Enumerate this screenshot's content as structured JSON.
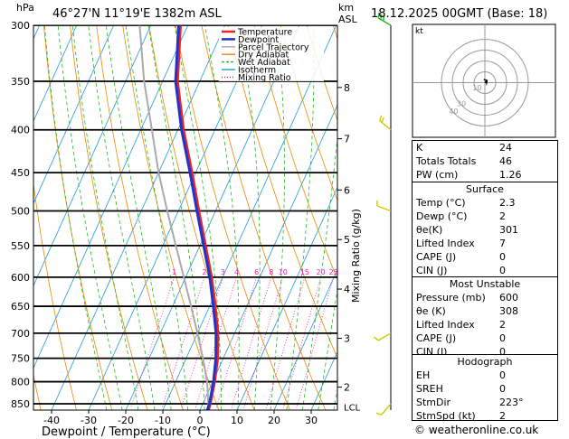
{
  "header": {
    "pressure_unit": "hPa",
    "location": "46°27'N  11°19'E  1382m  ASL",
    "height_unit_line1": "km",
    "height_unit_line2": "ASL",
    "datetime": "18.12.2025  00GMT  (Base: 18)"
  },
  "hodograph": {
    "unit_label": "kt",
    "ring_labels": [
      "40",
      "30",
      "10"
    ]
  },
  "indices": {
    "K_label": "K",
    "K": "24",
    "TT_label": "Totals Totals",
    "TT": "46",
    "PW_label": "PW (cm)",
    "PW": "1.26"
  },
  "surface": {
    "title": "Surface",
    "temp_label": "Temp (°C)",
    "temp": "2.3",
    "dewp_label": "Dewp (°C)",
    "dewp": "2",
    "theta_label": "θe(K)",
    "theta": "301",
    "li_label": "Lifted Index",
    "li": "7",
    "cape_label": "CAPE (J)",
    "cape": "0",
    "cin_label": "CIN (J)",
    "cin": "0"
  },
  "most_unstable": {
    "title": "Most Unstable",
    "pres_label": "Pressure (mb)",
    "pres": "600",
    "theta_label": "θe (K)",
    "theta": "308",
    "li_label": "Lifted Index",
    "li": "2",
    "cape_label": "CAPE (J)",
    "cape": "0",
    "cin_label": "CIN (J)",
    "cin": "0"
  },
  "hodo_table": {
    "title": "Hodograph",
    "eh_label": "EH",
    "eh": "0",
    "sreh_label": "SREH",
    "sreh": "0",
    "dir_label": "StmDir",
    "dir": "223°",
    "spd_label": "StmSpd (kt)",
    "spd": "2"
  },
  "copyright": "© weatheronline.co.uk",
  "colors": {
    "temperature": "#ee2222",
    "dewpoint": "#2233cc",
    "parcel": "#aaaaaa",
    "dry_adiabat": "#ee8800",
    "wet_adiabat": "#22bb22",
    "isotherm": "#2299dd",
    "mixing_ratio": "#dd22aa",
    "wind": "#cccc00"
  },
  "chart_data": {
    "type": "line",
    "title": "Skew-T log-P diagram",
    "xlabel": "Dewpoint / Temperature (°C)",
    "ylabel": "hPa",
    "x_ticks": [
      -40,
      -30,
      -20,
      -10,
      0,
      10,
      20,
      30
    ],
    "pressure_levels": [
      300,
      350,
      400,
      450,
      500,
      550,
      600,
      650,
      700,
      750,
      800,
      850
    ],
    "km_labels": [
      "8",
      "7",
      "6",
      "5",
      "4",
      "3",
      "2"
    ],
    "km_pressures": [
      356,
      410,
      472,
      541,
      620,
      710,
      812
    ],
    "lcl_label": "LCL",
    "lcl_pressure": 858,
    "mixing_ratio_title": "Mixing Ratio (g/kg)",
    "mixing_ratio_labels": [
      "1",
      "2",
      "3",
      "4",
      "6",
      "8",
      "10",
      "15",
      "20",
      "25"
    ],
    "mixing_ratio_values": [
      1,
      2,
      3,
      4,
      6,
      8,
      10,
      15,
      20,
      25
    ],
    "legend": [
      "Temperature",
      "Dewpoint",
      "Parcel Trajectory",
      "Dry Adiabat",
      "Wet Adiabat",
      "Isotherm",
      "Mixing Ratio"
    ],
    "series": [
      {
        "name": "Temperature",
        "pressure": [
          300,
          350,
          400,
          450,
          500,
          550,
          600,
          650,
          700,
          750,
          800,
          850,
          865
        ],
        "values": [
          -52,
          -46,
          -38.5,
          -31,
          -24.5,
          -18.5,
          -13,
          -8.5,
          -4.5,
          -1.5,
          0.5,
          2,
          2.3
        ]
      },
      {
        "name": "Dewpoint",
        "pressure": [
          300,
          350,
          400,
          450,
          500,
          550,
          600,
          650,
          700,
          750,
          800,
          850,
          865
        ],
        "values": [
          -52.5,
          -46.5,
          -39,
          -31.5,
          -25,
          -19,
          -13.5,
          -9,
          -5,
          -2,
          0.2,
          1.8,
          2.0
        ]
      },
      {
        "name": "Parcel Trajectory",
        "pressure": [
          300,
          350,
          400,
          450,
          500,
          550,
          600,
          650,
          700,
          750,
          800,
          850,
          865
        ],
        "values": [
          -63,
          -55,
          -47,
          -40,
          -33,
          -26.5,
          -20.5,
          -15,
          -10,
          -5.5,
          -1.5,
          1.5,
          2.3
        ]
      }
    ],
    "wind_barbs": [
      {
        "pressure": 300,
        "dir": 300,
        "kt": 30
      },
      {
        "pressure": 400,
        "dir": 310,
        "kt": 15
      },
      {
        "pressure": 500,
        "dir": 290,
        "kt": 10
      },
      {
        "pressure": 700,
        "dir": 240,
        "kt": 10
      },
      {
        "pressure": 850,
        "dir": 220,
        "kt": 5
      }
    ],
    "hodograph_trace": [
      [
        0,
        0
      ],
      [
        1,
        1
      ],
      [
        1.5,
        -0.5
      ],
      [
        2,
        2
      ],
      [
        -1,
        3
      ]
    ]
  }
}
